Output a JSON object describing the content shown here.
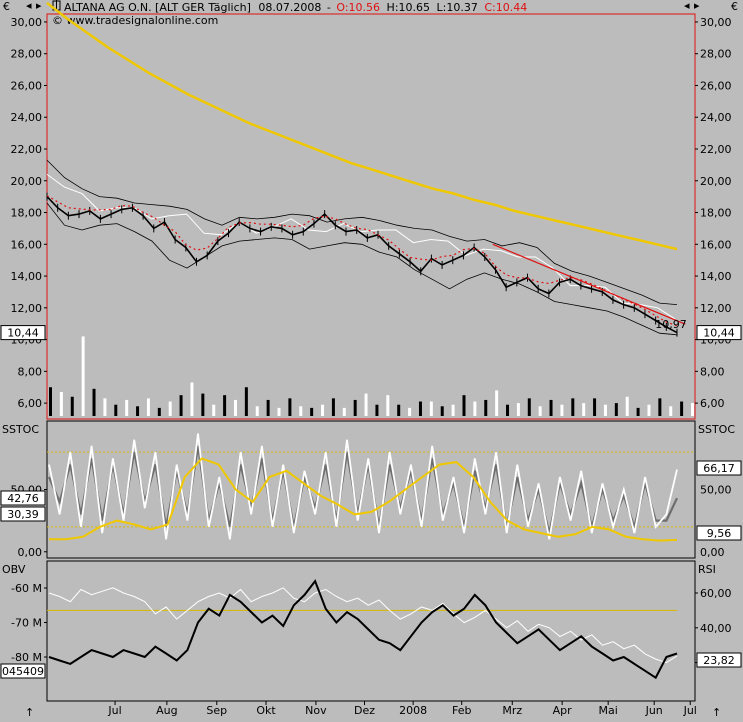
{
  "header": {
    "currency_left": "€",
    "currency_right": "€",
    "instrument": "ALTANA AG O.N. [ALT GER  Täglich]",
    "date": "08.07.2008",
    "open": "O:10.56",
    "high": "H:10.65",
    "low": "L:10.37",
    "close": "C:10.44",
    "watermark": "© www.tradesignalonline.com"
  },
  "colors": {
    "background": "#bcbcbc",
    "accent_red": "#e01010",
    "ma_yellow": "#f0c800",
    "guide_yellow": "#d8b800",
    "white": "#ffffff",
    "black": "#000000"
  },
  "chart_data": [
    {
      "type": "line",
      "panel": "price",
      "ylim": [
        5,
        30.5
      ],
      "yticks": [
        "30,00",
        "28,00",
        "26,00",
        "24,00",
        "22,00",
        "20,00",
        "18,00",
        "16,00",
        "14,00",
        "12,00",
        "10,00",
        "8,00",
        "6,00"
      ],
      "ytick_values": [
        30,
        28,
        26,
        24,
        22,
        20,
        18,
        16,
        14,
        12,
        10,
        8,
        6
      ],
      "last_price_label": "10,44",
      "last_price_value": 10.44,
      "trendline_label": "10,97",
      "trendline": {
        "from": [
          0.688,
          16.0
        ],
        "to": [
          0.985,
          10.97
        ]
      },
      "close": [
        19.0,
        18.3,
        17.8,
        17.9,
        18.1,
        17.6,
        17.9,
        18.2,
        18.3,
        17.8,
        17.0,
        17.4,
        16.3,
        15.8,
        14.9,
        15.3,
        16.2,
        16.7,
        17.4,
        17.0,
        16.8,
        17.1,
        17.0,
        16.6,
        16.8,
        17.3,
        17.9,
        17.2,
        16.8,
        16.9,
        16.4,
        16.6,
        15.9,
        15.4,
        14.9,
        14.3,
        15.1,
        14.7,
        15.0,
        15.3,
        15.8,
        15.2,
        14.4,
        13.3,
        13.6,
        13.9,
        13.2,
        12.9,
        13.6,
        13.8,
        13.4,
        13.2,
        13.0,
        12.5,
        12.2,
        12.0,
        11.6,
        11.2,
        10.8,
        10.44
      ],
      "sma_long": [
        31.2,
        30.2,
        29.3,
        28.4,
        27.6,
        26.8,
        26.1,
        25.4,
        24.8,
        24.2,
        23.6,
        23.1,
        22.6,
        22.1,
        21.6,
        21.1,
        20.7,
        20.3,
        19.9,
        19.5,
        19.2,
        18.8,
        18.5,
        18.1,
        17.8,
        17.5,
        17.2,
        16.9,
        16.6,
        16.3,
        16.0,
        15.7
      ],
      "upper_band": [
        21.3,
        20.2,
        19.5,
        19.0,
        18.9,
        18.6,
        18.5,
        18.4,
        18.2,
        17.6,
        17.2,
        17.7,
        17.6,
        17.7,
        17.9,
        17.8,
        17.4,
        17.6,
        17.7,
        17.5,
        17.2,
        17.0,
        16.9,
        16.5,
        16.2,
        16.3,
        15.9,
        16.1,
        15.8,
        14.8,
        14.3,
        14.0,
        13.6,
        13.2,
        12.8,
        12.3,
        12.2
      ],
      "lower_band": [
        18.6,
        17.2,
        16.9,
        17.2,
        17.3,
        16.8,
        16.2,
        15.0,
        14.5,
        15.2,
        15.9,
        16.2,
        16.3,
        16.4,
        16.3,
        15.7,
        15.9,
        16.1,
        16.0,
        15.5,
        15.2,
        14.4,
        13.8,
        13.2,
        13.8,
        14.2,
        13.8,
        13.5,
        13.0,
        12.4,
        12.2,
        12.0,
        11.8,
        11.4,
        10.9,
        10.4,
        10.3
      ],
      "volume": [
        7.0,
        6.7,
        6.4,
        10.2,
        6.9,
        6.3,
        5.9,
        6.2,
        5.8,
        6.3,
        5.7,
        6.1,
        6.5,
        7.3,
        6.6,
        5.9,
        6.5,
        6.2,
        7.0,
        5.8,
        6.2,
        5.7,
        6.3,
        5.8,
        5.7,
        5.9,
        6.3,
        5.7,
        6.2,
        6.6,
        5.9,
        6.5,
        5.9,
        5.7,
        6.1,
        6.1,
        5.8,
        5.9,
        6.5,
        6.1,
        6.2,
        6.8,
        5.9,
        6.0,
        6.3,
        5.8,
        6.2,
        5.9,
        6.3,
        6.0,
        6.3,
        5.9,
        6.0,
        6.4,
        5.7,
        5.9,
        6.3,
        5.8,
        6.1,
        6.0
      ]
    },
    {
      "type": "line",
      "panel": "stochastic",
      "label_left": "SSTOC",
      "label_right": "SSTOC",
      "ylim": [
        -5,
        105
      ],
      "yticks": [
        "50,00",
        "0,00"
      ],
      "ytick_values": [
        50,
        0
      ],
      "right_ticks": [
        "50,00",
        "0,00"
      ],
      "left_values": [
        "42,76",
        "30,39"
      ],
      "right_values": [
        "66,17",
        "9,56"
      ],
      "overbought_level": 80,
      "oversold_level": 20,
      "percent_k": [
        70,
        30,
        80,
        20,
        85,
        15,
        75,
        25,
        90,
        35,
        80,
        10,
        70,
        25,
        95,
        20,
        60,
        10,
        80,
        30,
        85,
        20,
        70,
        15,
        65,
        30,
        80,
        20,
        90,
        25,
        75,
        15,
        80,
        30,
        70,
        20,
        85,
        25,
        60,
        15,
        75,
        30,
        80,
        15,
        70,
        20,
        55,
        10,
        60,
        25,
        65,
        15,
        55,
        20,
        50,
        15,
        60,
        20,
        30,
        66
      ],
      "percent_d": [
        60,
        40,
        70,
        30,
        75,
        25,
        70,
        30,
        80,
        40,
        70,
        20,
        65,
        30,
        85,
        25,
        55,
        20,
        70,
        35,
        75,
        25,
        65,
        20,
        60,
        35,
        70,
        25,
        80,
        30,
        70,
        20,
        70,
        35,
        65,
        25,
        75,
        30,
        55,
        20,
        65,
        35,
        70,
        20,
        60,
        25,
        50,
        15,
        55,
        30,
        55,
        20,
        50,
        25,
        45,
        20,
        55,
        25,
        25,
        43
      ],
      "slow_yellow": [
        10,
        10,
        12,
        20,
        25,
        22,
        18,
        22,
        60,
        75,
        70,
        50,
        40,
        60,
        65,
        55,
        45,
        38,
        30,
        32,
        40,
        50,
        60,
        70,
        72,
        60,
        40,
        25,
        18,
        15,
        12,
        14,
        20,
        18,
        12,
        10,
        9,
        9.56
      ]
    },
    {
      "type": "line",
      "panel": "obv_rsi",
      "label_left": "OBV",
      "label_right": "RSI",
      "left_ticks": [
        "-60 M",
        "-70 M",
        "-80 M"
      ],
      "left_tick_values": [
        -60,
        -70,
        -80
      ],
      "right_ticks": [
        "60,00",
        "40,00",
        "20,00"
      ],
      "right_tick_values": [
        60,
        40,
        20
      ],
      "left_value": "045409",
      "right_value": "23,82",
      "guide_level": 50,
      "obv": [
        -80,
        -81,
        -82,
        -80,
        -78,
        -79,
        -80,
        -78,
        -79,
        -80,
        -77,
        -79,
        -81,
        -78,
        -70,
        -66,
        -68,
        -62,
        -64,
        -67,
        -70,
        -68,
        -71,
        -65,
        -62,
        -58,
        -66,
        -70,
        -67,
        -69,
        -72,
        -75,
        -76,
        -78,
        -74,
        -70,
        -67,
        -65,
        -68,
        -66,
        -62,
        -65,
        -70,
        -73,
        -76,
        -74,
        -72,
        -75,
        -78,
        -76,
        -74,
        -77,
        -79,
        -81,
        -80,
        -82,
        -84,
        -86,
        -80,
        -79
      ],
      "rsi": [
        60,
        58,
        55,
        62,
        59,
        61,
        63,
        60,
        58,
        55,
        48,
        52,
        45,
        50,
        55,
        58,
        60,
        57,
        62,
        55,
        58,
        60,
        63,
        57,
        55,
        60,
        62,
        58,
        55,
        57,
        53,
        56,
        50,
        45,
        48,
        52,
        50,
        54,
        48,
        43,
        46,
        50,
        45,
        40,
        44,
        38,
        42,
        40,
        35,
        38,
        33,
        36,
        30,
        32,
        28,
        30,
        25,
        22,
        20,
        23.82
      ]
    }
  ],
  "xaxis": {
    "labels": [
      "Jul",
      "Aug",
      "Sep",
      "Okt",
      "Nov",
      "Dez",
      "2008",
      "Feb",
      "Mrz",
      "Apr",
      "Mai",
      "Jun",
      "Jul"
    ],
    "positions": [
      0.105,
      0.185,
      0.262,
      0.338,
      0.415,
      0.49,
      0.565,
      0.64,
      0.718,
      0.795,
      0.866,
      0.937,
      1.005
    ]
  }
}
